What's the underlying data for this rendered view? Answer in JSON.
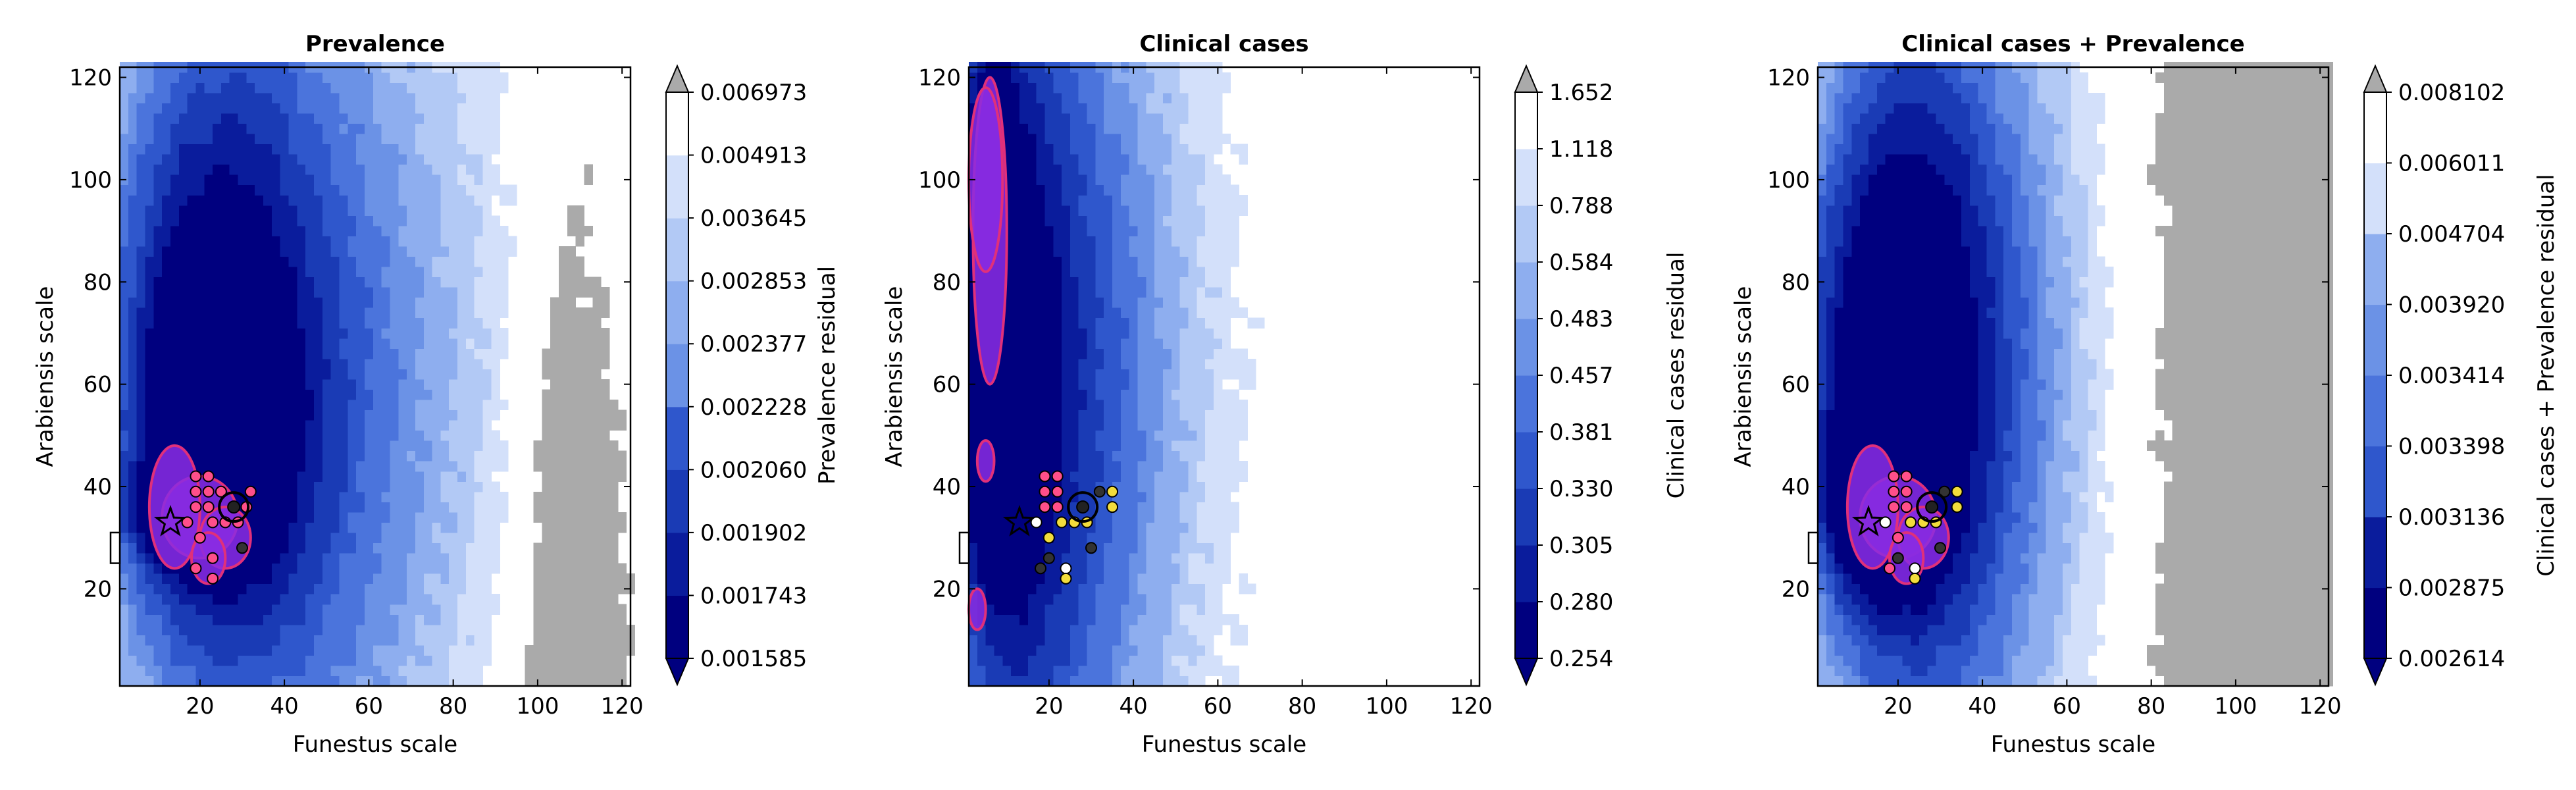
{
  "colors": {
    "scale": [
      "#00007f",
      "#0a1c9c",
      "#1a3bb5",
      "#2f57cc",
      "#4b74dc",
      "#6b92e6",
      "#8eaeef",
      "#b2c9f5",
      "#d3e0fa",
      "#ffffff"
    ],
    "over": "#aaaaaa",
    "highlight_fill": "#8a2be2",
    "highlight_edge": "#e0307a",
    "marker_pink": "#ff4f8a",
    "marker_yellow": "#f2dc3c",
    "marker_dark": "#333333"
  },
  "chart_data": [
    {
      "type": "contour",
      "title": "Prevalence",
      "xlabel": "Funestus scale",
      "ylabel": "Arabiensis scale",
      "xlim": [
        1,
        122
      ],
      "ylim": [
        1,
        122
      ],
      "xticks": [
        "20",
        "40",
        "60",
        "80",
        "100",
        "120"
      ],
      "yticks": [
        "20",
        "40",
        "60",
        "80",
        "100",
        "120"
      ],
      "colorbar": {
        "label": "Prevalence residual",
        "levels": [
          "0.001585",
          "0.001743",
          "0.001902",
          "0.002060",
          "0.002228",
          "0.002377",
          "0.002853",
          "0.003645",
          "0.004913",
          "0.006973"
        ]
      },
      "best_fit": {
        "x": 13,
        "y": 33
      },
      "circle_marker": {
        "x": 28,
        "y": 36
      },
      "points": [
        {
          "x": 19,
          "y": 42,
          "c": "pink"
        },
        {
          "x": 22,
          "y": 42,
          "c": "pink"
        },
        {
          "x": 19,
          "y": 39,
          "c": "pink"
        },
        {
          "x": 22,
          "y": 39,
          "c": "pink"
        },
        {
          "x": 25,
          "y": 39,
          "c": "pink"
        },
        {
          "x": 32,
          "y": 39,
          "c": "pink"
        },
        {
          "x": 19,
          "y": 36,
          "c": "pink"
        },
        {
          "x": 22,
          "y": 36,
          "c": "pink"
        },
        {
          "x": 31,
          "y": 36,
          "c": "pink"
        },
        {
          "x": 17,
          "y": 33,
          "c": "pink"
        },
        {
          "x": 23,
          "y": 33,
          "c": "pink"
        },
        {
          "x": 26,
          "y": 33,
          "c": "pink"
        },
        {
          "x": 29,
          "y": 33,
          "c": "pink"
        },
        {
          "x": 20,
          "y": 30,
          "c": "pink"
        },
        {
          "x": 23,
          "y": 26,
          "c": "pink"
        },
        {
          "x": 19,
          "y": 24,
          "c": "pink"
        },
        {
          "x": 23,
          "y": 22,
          "c": "pink"
        },
        {
          "x": 30,
          "y": 28,
          "c": "dark"
        }
      ]
    },
    {
      "type": "contour",
      "title": "Clinical cases",
      "xlabel": "Funestus scale",
      "ylabel": "Arabiensis scale",
      "xlim": [
        1,
        122
      ],
      "ylim": [
        1,
        122
      ],
      "xticks": [
        "20",
        "40",
        "60",
        "80",
        "100",
        "120"
      ],
      "yticks": [
        "20",
        "40",
        "60",
        "80",
        "100",
        "120"
      ],
      "colorbar": {
        "label": "Clinical cases residual",
        "levels": [
          "0.254",
          "0.280",
          "0.305",
          "0.330",
          "0.381",
          "0.457",
          "0.483",
          "0.584",
          "0.788",
          "1.118",
          "1.652"
        ]
      },
      "best_fit": {
        "x": 13,
        "y": 33
      },
      "circle_marker": {
        "x": 28,
        "y": 36
      },
      "points": [
        {
          "x": 19,
          "y": 42,
          "c": "pink"
        },
        {
          "x": 22,
          "y": 42,
          "c": "pink"
        },
        {
          "x": 19,
          "y": 39,
          "c": "pink"
        },
        {
          "x": 22,
          "y": 39,
          "c": "pink"
        },
        {
          "x": 19,
          "y": 36,
          "c": "pink"
        },
        {
          "x": 22,
          "y": 36,
          "c": "pink"
        },
        {
          "x": 32,
          "y": 39,
          "c": "dark"
        },
        {
          "x": 35,
          "y": 39,
          "c": "yellow"
        },
        {
          "x": 35,
          "y": 36,
          "c": "yellow"
        },
        {
          "x": 17,
          "y": 33,
          "c": "white"
        },
        {
          "x": 23,
          "y": 33,
          "c": "yellow"
        },
        {
          "x": 26,
          "y": 33,
          "c": "yellow"
        },
        {
          "x": 29,
          "y": 33,
          "c": "yellow"
        },
        {
          "x": 20,
          "y": 30,
          "c": "yellow"
        },
        {
          "x": 30,
          "y": 28,
          "c": "dark"
        },
        {
          "x": 20,
          "y": 26,
          "c": "dark"
        },
        {
          "x": 18,
          "y": 24,
          "c": "dark"
        },
        {
          "x": 24,
          "y": 24,
          "c": "white"
        },
        {
          "x": 24,
          "y": 22,
          "c": "yellow"
        }
      ]
    },
    {
      "type": "contour",
      "title": "Clinical cases + Prevalence",
      "xlabel": "Funestus scale",
      "ylabel": "Arabiensis scale",
      "xlim": [
        1,
        122
      ],
      "ylim": [
        1,
        122
      ],
      "xticks": [
        "20",
        "40",
        "60",
        "80",
        "100",
        "120"
      ],
      "yticks": [
        "20",
        "40",
        "60",
        "80",
        "100",
        "120"
      ],
      "colorbar": {
        "label": "Clinical cases + Prevalence residual",
        "levels": [
          "0.002614",
          "0.002875",
          "0.003136",
          "0.003398",
          "0.003414",
          "0.003920",
          "0.004704",
          "0.006011",
          "0.008102"
        ]
      },
      "best_fit": {
        "x": 13,
        "y": 33
      },
      "circle_marker": {
        "x": 28,
        "y": 36
      },
      "points": [
        {
          "x": 19,
          "y": 42,
          "c": "pink"
        },
        {
          "x": 22,
          "y": 42,
          "c": "pink"
        },
        {
          "x": 19,
          "y": 39,
          "c": "pink"
        },
        {
          "x": 22,
          "y": 39,
          "c": "pink"
        },
        {
          "x": 19,
          "y": 36,
          "c": "pink"
        },
        {
          "x": 22,
          "y": 36,
          "c": "pink"
        },
        {
          "x": 31,
          "y": 39,
          "c": "dark"
        },
        {
          "x": 34,
          "y": 39,
          "c": "yellow"
        },
        {
          "x": 34,
          "y": 36,
          "c": "yellow"
        },
        {
          "x": 17,
          "y": 33,
          "c": "white"
        },
        {
          "x": 23,
          "y": 33,
          "c": "yellow"
        },
        {
          "x": 26,
          "y": 33,
          "c": "yellow"
        },
        {
          "x": 29,
          "y": 33,
          "c": "yellow"
        },
        {
          "x": 20,
          "y": 30,
          "c": "pink"
        },
        {
          "x": 30,
          "y": 28,
          "c": "dark"
        },
        {
          "x": 20,
          "y": 26,
          "c": "dark"
        },
        {
          "x": 18,
          "y": 24,
          "c": "pink"
        },
        {
          "x": 24,
          "y": 24,
          "c": "white"
        },
        {
          "x": 24,
          "y": 22,
          "c": "yellow"
        }
      ]
    }
  ]
}
